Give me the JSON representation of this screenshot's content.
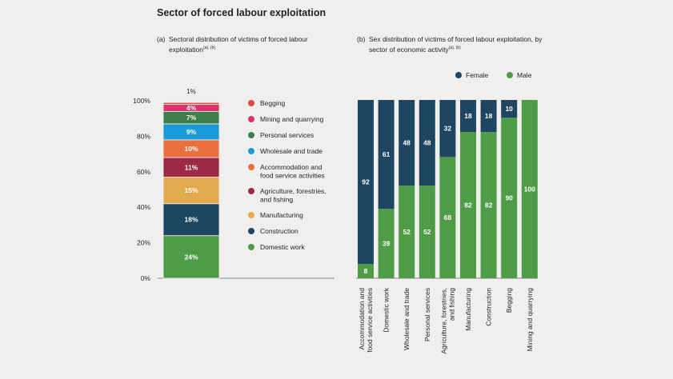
{
  "title": "Sector of forced labour exploitation",
  "colors": {
    "Begging": "#e04b3c",
    "Mining and quarrying": "#e0306a",
    "Personal services": "#3e7e4a",
    "Wholesale and trade": "#1a9ad6",
    "Accommodation": "#e9713f",
    "Agriculture": "#9c2a45",
    "Manufacturing": "#e2a94e",
    "Construction": "#1e4561",
    "Domestic work": "#4e9c48",
    "Female": "#1e4561",
    "Male": "#4e9c48"
  },
  "chart_data": [
    {
      "type": "bar",
      "stacked": true,
      "panel_letter": "(a)",
      "title": "Sectoral distribution of victims of forced labour exploitation",
      "title_sup": "(a), (b)",
      "ylabel": "",
      "ylim": [
        0,
        100
      ],
      "y_ticks": [
        "0%",
        "20%",
        "40%",
        "60%",
        "80%",
        "100%"
      ],
      "legend_position": "right",
      "segments": [
        {
          "name": "Domestic work",
          "value": 24,
          "label": "24%",
          "color_key": "Domestic work"
        },
        {
          "name": "Construction",
          "value": 18,
          "label": "18%",
          "color_key": "Construction"
        },
        {
          "name": "Manufacturing",
          "value": 15,
          "label": "15%",
          "color_key": "Manufacturing"
        },
        {
          "name": "Agriculture, forestries, and fishing",
          "value": 11,
          "label": "11%",
          "color_key": "Agriculture"
        },
        {
          "name": "Accommodation and food service activities",
          "value": 10,
          "label": "10%",
          "color_key": "Accommodation"
        },
        {
          "name": "Wholesale and trade",
          "value": 9,
          "label": "9%",
          "color_key": "Wholesale and trade"
        },
        {
          "name": "Personal services",
          "value": 7,
          "label": "7%",
          "color_key": "Personal services"
        },
        {
          "name": "Mining and quarrying",
          "value": 4,
          "label": "4%",
          "color_key": "Mining and quarrying"
        },
        {
          "name": "Begging",
          "value": 1,
          "label": "1%",
          "color_key": "Begging"
        }
      ],
      "legend": [
        {
          "lines": [
            "Begging"
          ],
          "color_key": "Begging"
        },
        {
          "lines": [
            "Mining and quarrying"
          ],
          "color_key": "Mining and quarrying"
        },
        {
          "lines": [
            "Personal services"
          ],
          "color_key": "Personal services"
        },
        {
          "lines": [
            "Wholesale and trade"
          ],
          "color_key": "Wholesale and trade"
        },
        {
          "lines": [
            "Accommodation and",
            "food service activities"
          ],
          "color_key": "Accommodation"
        },
        {
          "lines": [
            "Agriculture, forestries,",
            "and fishing"
          ],
          "color_key": "Agriculture"
        },
        {
          "lines": [
            "Manufacturing"
          ],
          "color_key": "Manufacturing"
        },
        {
          "lines": [
            "Construction"
          ],
          "color_key": "Construction"
        },
        {
          "lines": [
            "Domestic work"
          ],
          "color_key": "Domestic work"
        }
      ]
    },
    {
      "type": "bar",
      "stacked": true,
      "panel_letter": "(b)",
      "title": "Sex distribution of victims of forced labour exploitation, by sector of economic activity",
      "title_sup": "(a), (b)",
      "ylim": [
        0,
        100
      ],
      "legend_position": "top-right",
      "legend": [
        {
          "name": "Female",
          "color_key": "Female"
        },
        {
          "name": "Male",
          "color_key": "Male"
        }
      ],
      "categories": [
        {
          "lines": [
            "Accommodation and",
            "food service activities"
          ],
          "male": 8,
          "female": 92
        },
        {
          "lines": [
            "Domestic work"
          ],
          "male": 39,
          "female": 61
        },
        {
          "lines": [
            "Wholesale and trade"
          ],
          "male": 52,
          "female": 48
        },
        {
          "lines": [
            "Personal services"
          ],
          "male": 52,
          "female": 48
        },
        {
          "lines": [
            "Agriculture, forestries,",
            "and fishing"
          ],
          "male": 68,
          "female": 32
        },
        {
          "lines": [
            "Manufacturing"
          ],
          "male": 82,
          "female": 18
        },
        {
          "lines": [
            "Construction"
          ],
          "male": 82,
          "female": 18
        },
        {
          "lines": [
            "Begging"
          ],
          "male": 90,
          "female": 10
        },
        {
          "lines": [
            "Mining and quarrying"
          ],
          "male": 100,
          "female": 0
        }
      ]
    }
  ]
}
